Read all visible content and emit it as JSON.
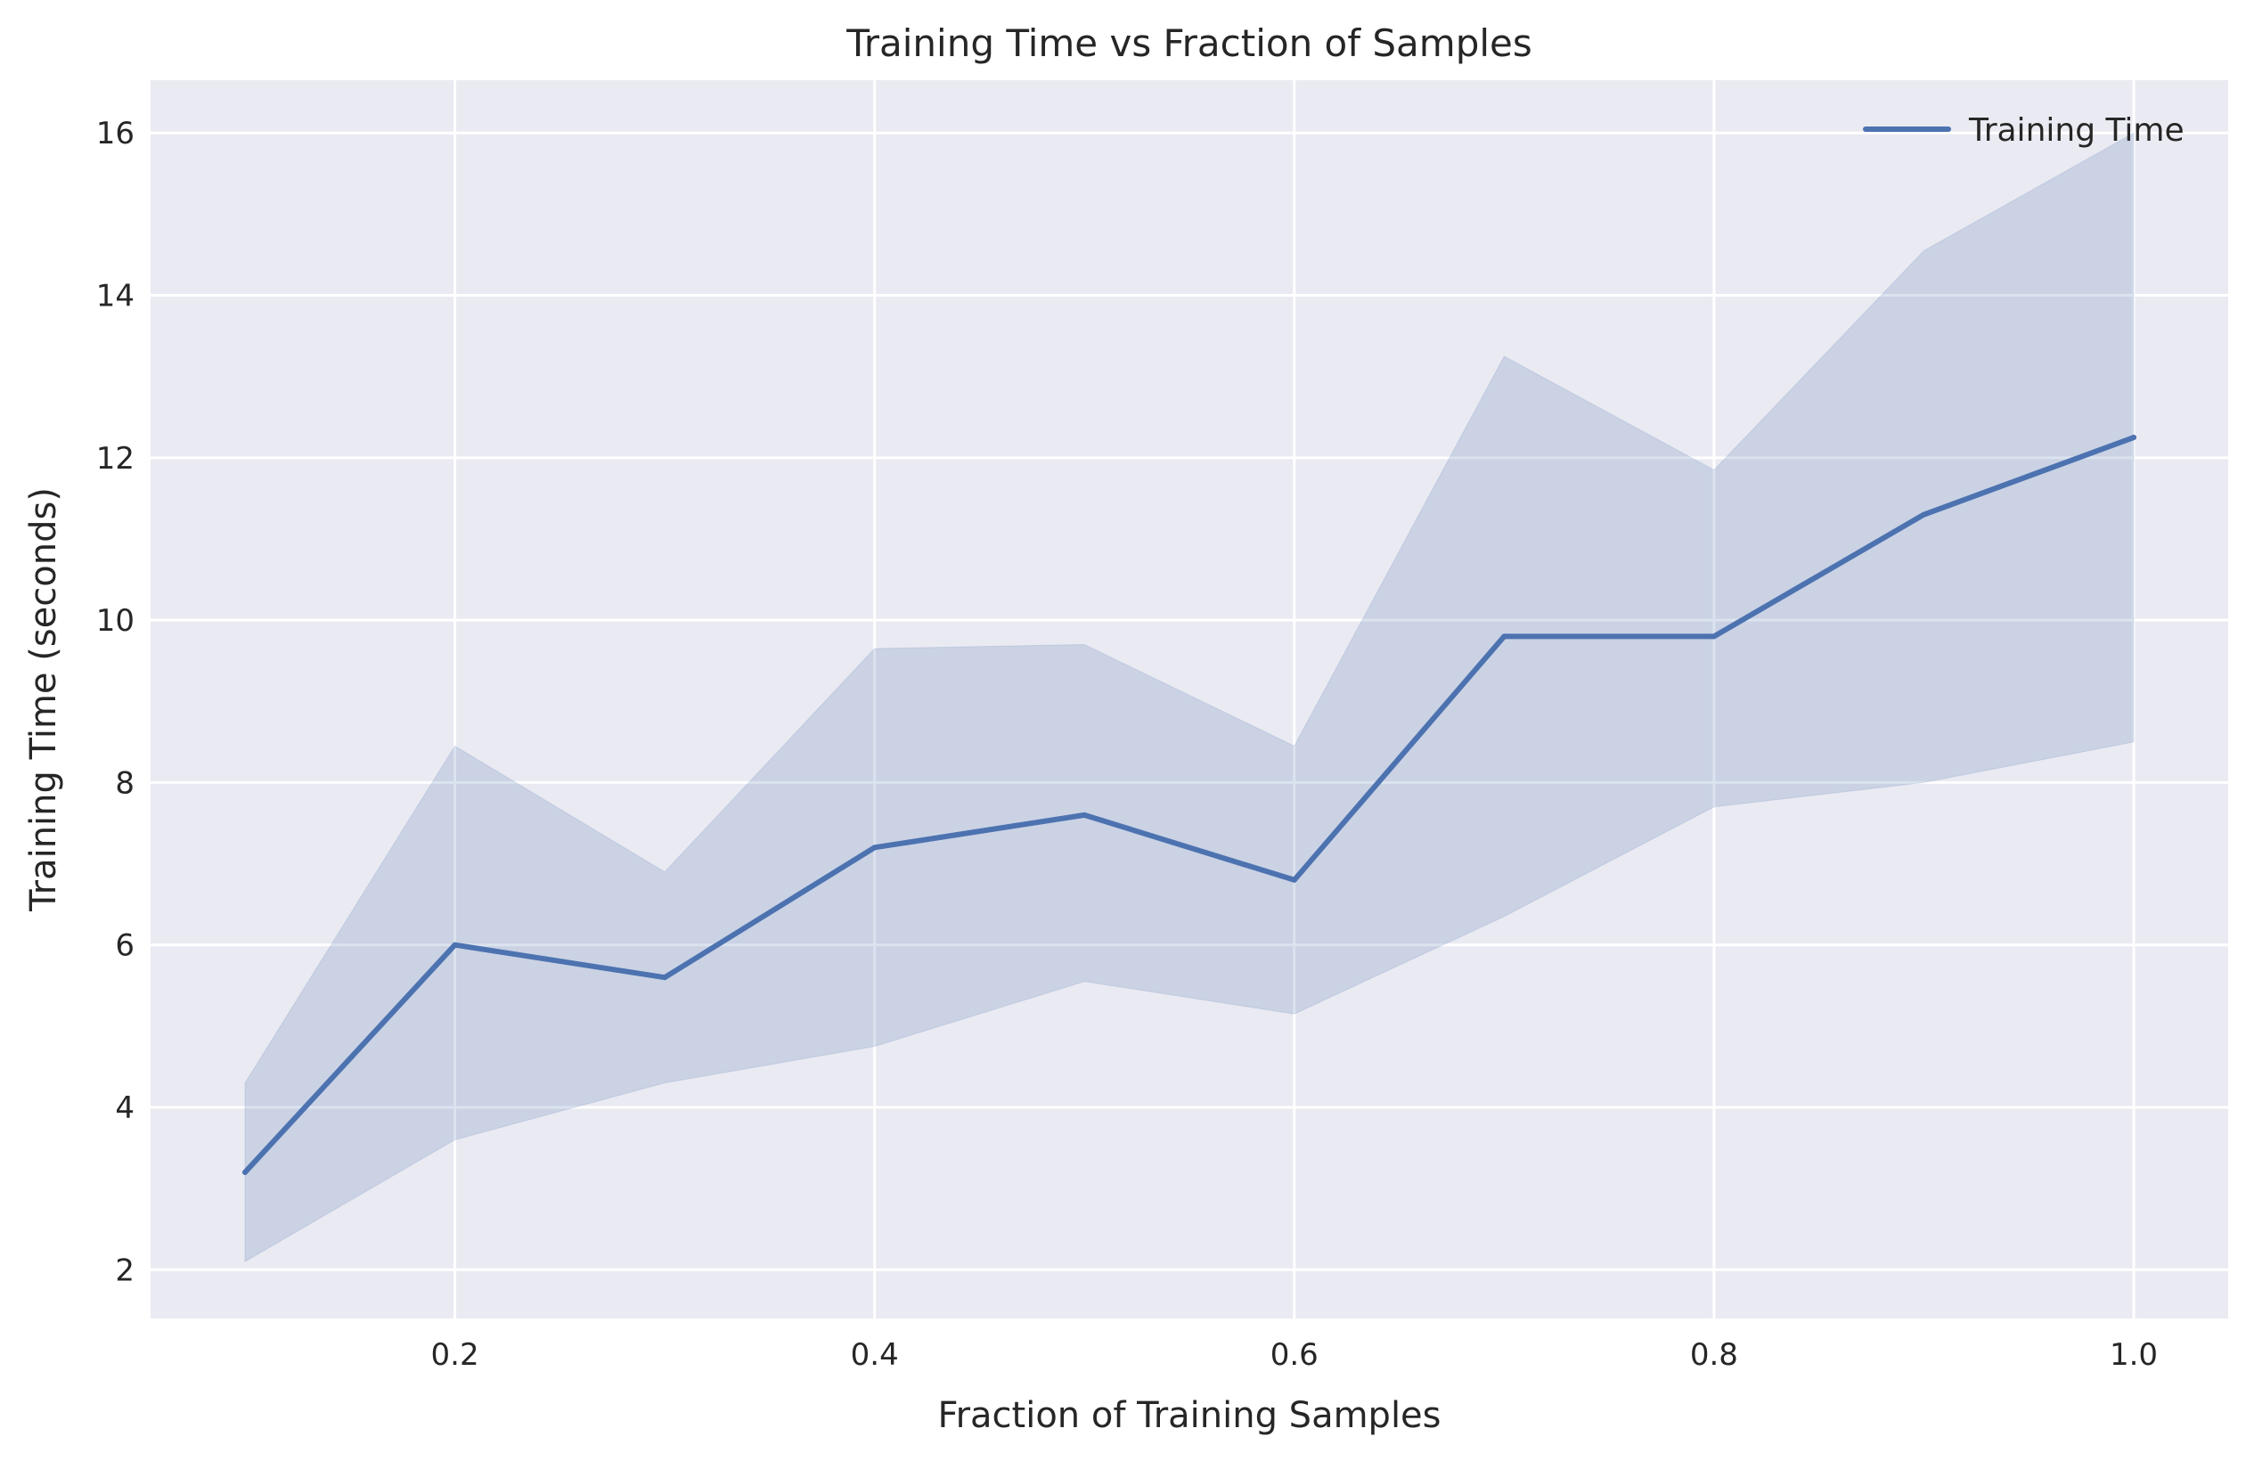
{
  "chart_data": {
    "type": "line",
    "title": "Training Time vs Fraction of Samples",
    "xlabel": "Fraction of Training Samples",
    "ylabel": "Training Time (seconds)",
    "xlim": [
      0.055,
      1.045
    ],
    "ylim": [
      1.4,
      16.65
    ],
    "x_ticks": [
      0.2,
      0.4,
      0.6,
      0.8,
      1.0
    ],
    "x_tick_labels": [
      "0.2",
      "0.4",
      "0.6",
      "0.8",
      "1.0"
    ],
    "y_ticks": [
      2,
      4,
      6,
      8,
      10,
      12,
      14,
      16
    ],
    "y_tick_labels": [
      "2",
      "4",
      "6",
      "8",
      "10",
      "12",
      "14",
      "16"
    ],
    "grid": true,
    "legend": {
      "position": "top-right",
      "entries": [
        "Training Time"
      ]
    },
    "x": [
      0.1,
      0.2,
      0.3,
      0.4,
      0.5,
      0.6,
      0.7,
      0.8,
      0.9,
      1.0
    ],
    "series": [
      {
        "name": "Training Time",
        "color": "#4c72b0",
        "values": [
          3.2,
          6.0,
          5.6,
          7.2,
          7.6,
          6.8,
          9.8,
          9.8,
          11.3,
          12.25
        ],
        "band_lower": [
          2.1,
          3.6,
          4.3,
          4.75,
          5.55,
          5.15,
          6.35,
          7.7,
          8.0,
          8.5
        ],
        "band_upper": [
          4.3,
          8.45,
          6.9,
          9.65,
          9.7,
          8.45,
          13.25,
          11.85,
          14.55,
          16.0
        ]
      }
    ],
    "colors": {
      "background": "#eaeaf2",
      "grid": "#ffffff",
      "band_fill": "#4c72b0"
    }
  }
}
